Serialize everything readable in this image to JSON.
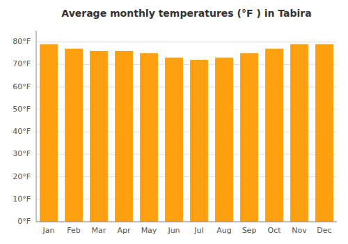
{
  "chart_data": {
    "type": "bar",
    "title": "Average monthly temperatures (°F ) in Tabira",
    "categories": [
      "Jan",
      "Feb",
      "Mar",
      "Apr",
      "May",
      "Jun",
      "Jul",
      "Aug",
      "Sep",
      "Oct",
      "Nov",
      "Dec"
    ],
    "values": [
      79,
      77,
      76,
      76,
      75,
      73,
      72,
      73,
      75,
      77,
      79,
      79
    ],
    "color": "#FFA010",
    "ylim": [
      0,
      85
    ],
    "yticks": [
      {
        "value": 0,
        "label": "0°F"
      },
      {
        "value": 10,
        "label": "10°F"
      },
      {
        "value": 20,
        "label": "20°F"
      },
      {
        "value": 30,
        "label": "30°F"
      },
      {
        "value": 40,
        "label": "40°F"
      },
      {
        "value": 50,
        "label": "50°F"
      },
      {
        "value": 60,
        "label": "60°F"
      },
      {
        "value": 70,
        "label": "70°F"
      },
      {
        "value": 80,
        "label": "80°F"
      }
    ],
    "grid": true
  }
}
